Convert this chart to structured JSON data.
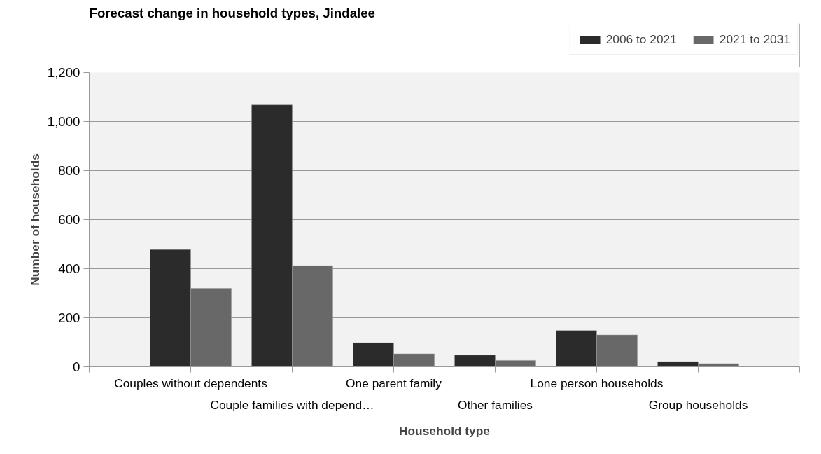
{
  "chart_data": {
    "type": "bar",
    "title": "Forecast change in household types, Jindalee",
    "xlabel": "Household type",
    "ylabel": "Number of households",
    "categories": [
      "Couples without dependents",
      "Couple families with depend…",
      "One parent family",
      "Other families",
      "Lone person households",
      "Group households"
    ],
    "series": [
      {
        "name": "2006 to 2021",
        "color": "#2b2b2b",
        "values": [
          478,
          1068,
          98,
          48,
          148,
          21
        ]
      },
      {
        "name": "2021 to 2031",
        "color": "#686868",
        "values": [
          320,
          412,
          53,
          26,
          130,
          13
        ]
      }
    ],
    "ylim": [
      0,
      1200
    ],
    "yticks": [
      0,
      {
        "value": 200,
        "label": "200"
      },
      {
        "value": 400,
        "label": "400"
      },
      {
        "value": 600,
        "label": "600"
      },
      {
        "value": 800,
        "label": "800"
      },
      {
        "value": 1000,
        "label": "1,000"
      },
      {
        "value": 1200,
        "label": "1,200"
      }
    ],
    "grid": "y",
    "legend": "top right"
  }
}
